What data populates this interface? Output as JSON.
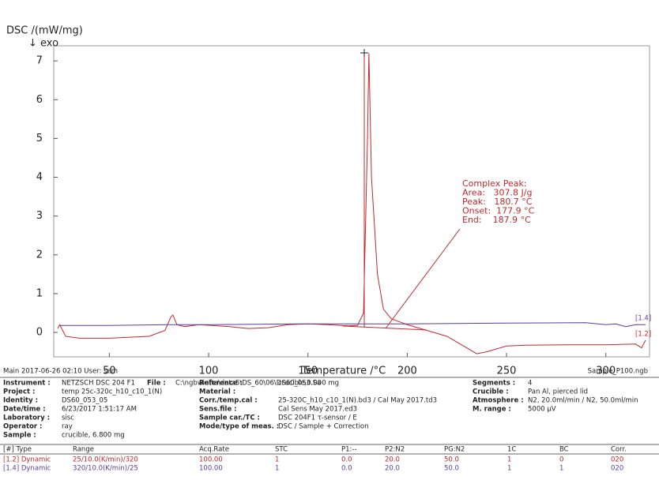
{
  "chart_data": {
    "type": "line",
    "y_label": "DSC /(mW/mg)",
    "y_sublabel": "↓ exo",
    "x_label": "Temperature /°C",
    "xlim": [
      22,
      322
    ],
    "ylim": [
      -0.63,
      7.39
    ],
    "xticks": [
      50,
      100,
      150,
      200,
      250,
      300
    ],
    "yticks": [
      0,
      1,
      2,
      3,
      4,
      5,
      6,
      7
    ],
    "series": [
      {
        "name": "[1.2]",
        "color": "#c0282d",
        "x": [
          24,
          25,
          28,
          35,
          50,
          70,
          78,
          81,
          82,
          84,
          88,
          95,
          110,
          120,
          130,
          140,
          150,
          160,
          170,
          175,
          178,
          180,
          180.7,
          182,
          185,
          188,
          192,
          200,
          210,
          220,
          230,
          235,
          240,
          250,
          260,
          280,
          300,
          315,
          318,
          320
        ],
        "values": [
          0.1,
          0.2,
          -0.1,
          -0.15,
          -0.15,
          -0.1,
          0.05,
          0.4,
          0.45,
          0.2,
          0.15,
          0.2,
          0.15,
          0.1,
          0.12,
          0.2,
          0.22,
          0.2,
          0.17,
          0.18,
          0.5,
          5,
          7.2,
          4,
          1.5,
          0.6,
          0.35,
          0.2,
          0.05,
          -0.1,
          -0.4,
          -0.55,
          -0.5,
          -0.35,
          -0.33,
          -0.32,
          -0.32,
          -0.3,
          -0.4,
          -0.2
        ]
      },
      {
        "name": "[1.4]",
        "color": "#5a3c9c",
        "x": [
          25,
          50,
          80,
          100,
          150,
          200,
          250,
          290,
          300,
          305,
          310,
          315,
          320
        ],
        "values": [
          0.18,
          0.18,
          0.2,
          0.2,
          0.22,
          0.22,
          0.24,
          0.25,
          0.2,
          0.22,
          0.15,
          0.2,
          0.2
        ]
      }
    ],
    "annotation": [
      "Complex Peak:",
      "Area:   307.8 J/g",
      "Peak:   180.7 °C",
      "Onset:  177.9 °C",
      "End:    187.9 °C"
    ]
  },
  "footer": {
    "left": "Main   2017-06-26 02:10    User: sem",
    "right": "Sample_P100.ngb"
  },
  "info": {
    "file": {
      "label": "File :",
      "value": "C:\\ngbwin\\ta\\data5\\DS_60\\06\\DS60_053.Sa"
    },
    "columns": [
      [
        {
          "label": "Instrument :",
          "value": "NETZSCH DSC 204 F1"
        },
        {
          "label": "Project :",
          "value": "temp 25c-320c_h10_c10_1(N)"
        },
        {
          "label": "Identity :",
          "value": "DS60_053_05"
        },
        {
          "label": "Date/time :",
          "value": "6/23/2017 1:51:17 AM"
        },
        {
          "label": "Laboratory :",
          "value": "sisc"
        },
        {
          "label": "Operator :",
          "value": "ray"
        },
        {
          "label": "Sample :",
          "value": "crucible, 6.800 mg"
        }
      ],
      [
        {
          "label": "Reference :",
          "value": "crucible,0.000 mg"
        },
        {
          "label": "Material :"
        },
        {
          "label": "Corr./temp.cal :",
          "value": "25-320C_h10_c10_1(N).bd3 / Cal May 2017.td3"
        },
        {
          "label": "Sens.file :",
          "value": "Cal Sens May 2017.ed3"
        },
        {
          "label": "Sample car./TC :",
          "value": "DSC 204F1 τ-sensor / E"
        },
        {
          "label": "Mode/type of meas. :",
          "value": "DSC / Sample + Correction"
        }
      ],
      [
        {
          "label": "Segments :",
          "value": "4"
        },
        {
          "label": "Crucible :",
          "value": "Pan Al, pierced lid"
        },
        {
          "label": "Atmosphere :",
          "value": "N2, 20.0ml/min / N2, 50.0ml/min"
        },
        {
          "label": "M. range :",
          "value": "5000 µV"
        }
      ]
    ]
  },
  "steps": {
    "header": [
      "[#] Type",
      "Range",
      "Acq.Rate",
      "STC",
      "P1:--",
      "P2:N2",
      "PG:N2",
      "1C",
      "BC",
      "Corr."
    ],
    "rows": [
      [
        "[1.2] Dynamic",
        "25/10.0(K/min)/320",
        "100.00",
        "1",
        "0.0",
        "20.0",
        "50.0",
        "1",
        "0",
        "020"
      ],
      [
        "[1.4] Dynamic",
        "320/10.0(K/min)/25",
        "100.00",
        "1",
        "0.0",
        "20.0",
        "50.0",
        "1",
        "1",
        "020"
      ]
    ]
  }
}
